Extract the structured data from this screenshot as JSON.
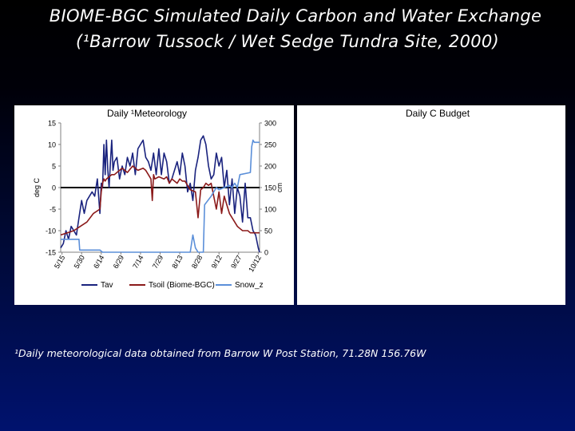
{
  "slide": {
    "title_line1": "BIOME-BGC Simulated Daily Carbon and Water Exchange",
    "title_line2": "(¹Barrow Tussock / Wet Sedge Tundra Site, 2000)",
    "footnote": "¹Daily meteorological data obtained from Barrow W Post Station, 71.28N 156.76W"
  },
  "panels": {
    "left_title": "Daily ¹Meteorology",
    "right_title": "Daily C Budget"
  },
  "colors": {
    "Tav": "#1a237e",
    "Tsoil": "#8b1a1a",
    "Snow_z": "#5b8fd9",
    "zero_line": "#000000"
  },
  "chart_data": {
    "type": "line",
    "title": "Daily ¹Meteorology",
    "ylabel": "deg C",
    "y2label": "cm",
    "ylim": [
      -15,
      15
    ],
    "y2lim": [
      0,
      300
    ],
    "yticks": [
      15,
      10,
      5,
      0,
      -5,
      -10,
      -15
    ],
    "y2ticks": [
      300,
      250,
      200,
      150,
      100,
      50,
      0
    ],
    "x_range_days": [
      135,
      287
    ],
    "x_tick_days": [
      136,
      151,
      166,
      181,
      196,
      211,
      226,
      241,
      256,
      271,
      286
    ],
    "x_tick_labels": [
      "5/15",
      "5/30",
      "6/14",
      "6/29",
      "7/14",
      "7/29",
      "8/13",
      "8/28",
      "9/12",
      "9/27",
      "10/12"
    ],
    "legend": [
      "Tav",
      "Tsoil (Biome-BGC)",
      "Snow_z"
    ],
    "legend_position": "bottom",
    "series": [
      {
        "name": "Tav",
        "axis": "left",
        "x": [
          135,
          137,
          139,
          141,
          143,
          145,
          147,
          149,
          151,
          153,
          155,
          157,
          159,
          161,
          163,
          165,
          166,
          167,
          168,
          169,
          170,
          171,
          172,
          173,
          174,
          175,
          176,
          178,
          180,
          182,
          184,
          186,
          188,
          190,
          192,
          194,
          196,
          198,
          200,
          202,
          204,
          206,
          208,
          210,
          212,
          214,
          216,
          218,
          220,
          222,
          224,
          226,
          228,
          230,
          232,
          234,
          236,
          238,
          240,
          242,
          244,
          246,
          248,
          250,
          252,
          254,
          256,
          258,
          260,
          262,
          264,
          266,
          268,
          270,
          272,
          274,
          276,
          278,
          280,
          282,
          284,
          286,
          287
        ],
        "y": [
          -14,
          -13,
          -10,
          -12,
          -9,
          -10,
          -11,
          -7,
          -3,
          -6,
          -3,
          -2,
          -1,
          -2,
          2,
          -6,
          1,
          0,
          10,
          3,
          11,
          4,
          0,
          6,
          11,
          4,
          6,
          7,
          2,
          5,
          3,
          7,
          5,
          8,
          3,
          9,
          10,
          11,
          7,
          6,
          4,
          8,
          3,
          9,
          3,
          8,
          6,
          1,
          2,
          4,
          6,
          3,
          8,
          5,
          -1,
          1,
          -3,
          4,
          7,
          11,
          12,
          10,
          5,
          2,
          3,
          8,
          5,
          7,
          0,
          4,
          -4,
          2,
          -6,
          0,
          -2,
          -8,
          1,
          -7,
          -7,
          -10,
          -11,
          -14,
          -15
        ]
      },
      {
        "name": "Tsoil (Biome-BGC)",
        "axis": "left",
        "x": [
          135,
          140,
          145,
          150,
          155,
          160,
          165,
          166,
          167,
          168,
          169,
          170,
          172,
          174,
          176,
          178,
          180,
          182,
          186,
          190,
          194,
          198,
          200,
          202,
          204,
          205,
          206,
          207,
          210,
          214,
          216,
          218,
          220,
          222,
          224,
          226,
          228,
          230,
          234,
          238,
          240,
          242,
          244,
          246,
          248,
          250,
          254,
          256,
          258,
          260,
          262,
          264,
          266,
          268,
          270,
          272,
          274,
          276,
          278,
          280,
          282,
          284,
          287
        ],
        "y": [
          -11,
          -10.5,
          -10,
          -9,
          -8,
          -6,
          -5,
          -1,
          1,
          2,
          1.5,
          2,
          2.5,
          3,
          3,
          3.5,
          4,
          4.5,
          3.5,
          5,
          4,
          4.5,
          4,
          3,
          2,
          -3,
          3,
          2,
          2.5,
          2,
          2.5,
          1,
          2,
          1.5,
          1,
          2,
          1.5,
          1.5,
          -0.5,
          -1,
          -7,
          -0.5,
          0,
          1,
          0.5,
          1,
          -5,
          -1,
          -6,
          -2,
          -4,
          -6,
          -7,
          -8,
          -9,
          -9.5,
          -10,
          -10,
          -10,
          -10.5,
          -10.5,
          -10.5,
          -10.5
        ]
      },
      {
        "name": "Snow_z",
        "axis": "right",
        "x": [
          135,
          145,
          149,
          149.5,
          152,
          165,
          167,
          172,
          233,
          234,
          236,
          238,
          240,
          244,
          245,
          250,
          254,
          256,
          264,
          266,
          268,
          270,
          272,
          280,
          281,
          282,
          283,
          287
        ],
        "y": [
          30,
          30,
          30,
          5,
          5,
          5,
          0,
          0,
          0,
          0,
          40,
          10,
          0,
          0,
          110,
          130,
          150,
          145,
          155,
          150,
          160,
          150,
          180,
          185,
          245,
          260,
          255,
          255
        ]
      }
    ]
  }
}
